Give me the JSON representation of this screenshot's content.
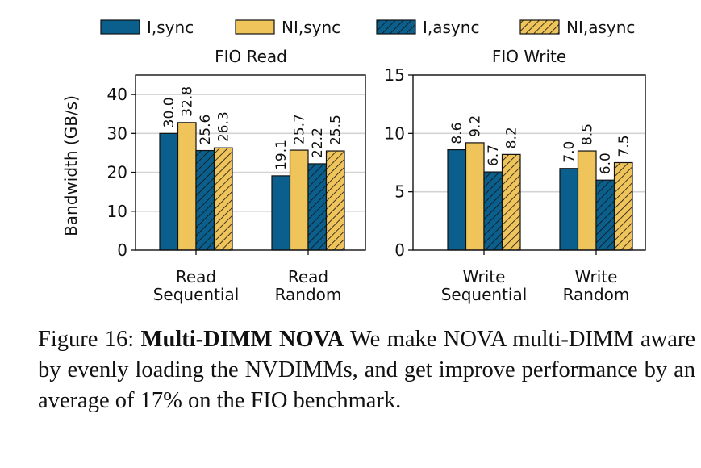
{
  "figure": {
    "caption_label": "Figure 16:",
    "caption_title": "Multi-DIMM NOVA",
    "caption_text": "We make NOVA multi-DIMM aware by evenly loading the NVDIMMs, and get improve performance by an average of 17% on the FIO benchmark."
  },
  "colors": {
    "blue": "#0a5f8d",
    "yellow": "#efc45b",
    "grid": "#d3d3d3",
    "stroke": "#111111"
  },
  "legend": [
    {
      "label": "I,sync",
      "color": "#0a5f8d",
      "hatch": false
    },
    {
      "label": "NI,sync",
      "color": "#efc45b",
      "hatch": false
    },
    {
      "label": "I,async",
      "color": "#0a5f8d",
      "hatch": true
    },
    {
      "label": "NI,async",
      "color": "#efc45b",
      "hatch": true
    }
  ],
  "chart_data": [
    {
      "type": "bar",
      "title": "FIO Read",
      "ylabel": "Bandwidth (GB/s)",
      "ylim": [
        0,
        45
      ],
      "yticks": [
        0,
        10,
        20,
        30,
        40
      ],
      "grid": true,
      "legend_position": "top",
      "categories": [
        "Read\nSequential",
        "Read\nRandom"
      ],
      "series": [
        {
          "name": "I,sync",
          "values": [
            30.0,
            19.1
          ],
          "labels": [
            "30.0",
            "19.1"
          ]
        },
        {
          "name": "NI,sync",
          "values": [
            32.8,
            25.7
          ],
          "labels": [
            "32.8",
            "25.7"
          ]
        },
        {
          "name": "I,async",
          "values": [
            25.6,
            22.2
          ],
          "labels": [
            "25.6",
            "22.2"
          ]
        },
        {
          "name": "NI,async",
          "values": [
            26.3,
            25.5
          ],
          "labels": [
            "26.3",
            "25.5"
          ]
        }
      ]
    },
    {
      "type": "bar",
      "title": "FIO Write",
      "ylabel": "",
      "ylim": [
        0,
        15
      ],
      "yticks": [
        0,
        5,
        10,
        15
      ],
      "grid": true,
      "legend_position": "top",
      "categories": [
        "Write\nSequential",
        "Write\nRandom"
      ],
      "series": [
        {
          "name": "I,sync",
          "values": [
            8.6,
            7.0
          ],
          "labels": [
            "8.6",
            "7.0"
          ]
        },
        {
          "name": "NI,sync",
          "values": [
            9.2,
            8.5
          ],
          "labels": [
            "9.2",
            "8.5"
          ]
        },
        {
          "name": "I,async",
          "values": [
            6.7,
            6.0
          ],
          "labels": [
            "6.7",
            "6.0"
          ]
        },
        {
          "name": "NI,async",
          "values": [
            8.2,
            7.5
          ],
          "labels": [
            "8.2",
            "7.5"
          ]
        }
      ]
    }
  ]
}
